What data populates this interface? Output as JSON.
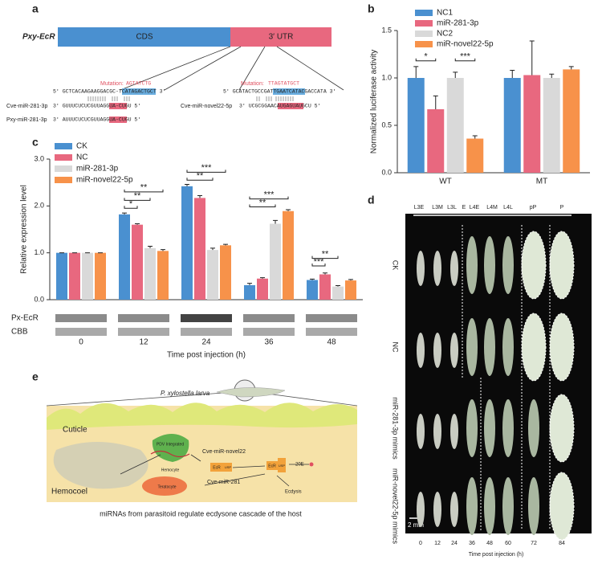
{
  "chart_data": [
    {
      "type": "bar",
      "label": "b",
      "ylabel": "Normalized luciferase activity",
      "categories": [
        "WT",
        "MT"
      ],
      "series": [
        {
          "name": "NC1",
          "color": "#4a90d0",
          "values": [
            1.0,
            1.0
          ],
          "errors": [
            0.12,
            0.08
          ]
        },
        {
          "name": "miR-281-3p",
          "color": "#e8687f",
          "values": [
            0.67,
            1.03
          ],
          "errors": [
            0.14,
            0.36
          ]
        },
        {
          "name": "NC2",
          "color": "#d9d9d9",
          "values": [
            1.0,
            1.0
          ],
          "errors": [
            0.06,
            0.04
          ]
        },
        {
          "name": "miR-novel22-5p",
          "color": "#f7924a",
          "values": [
            0.36,
            1.09
          ],
          "errors": [
            0.03,
            0.03
          ]
        }
      ],
      "annotations": [
        [
          "*",
          "***"
        ],
        []
      ],
      "ylim": [
        0,
        1.5
      ],
      "yticks": [
        {
          "value": 0,
          "label": "0.0"
        },
        0.5,
        {
          "value": 1,
          "label": "1.0"
        },
        1.5
      ]
    },
    {
      "type": "bar",
      "label": "c",
      "ylabel": "Relative expression level",
      "xlabel": "Time post injection (h)",
      "categories": [
        "0",
        "12",
        "24",
        "36",
        "48"
      ],
      "series": [
        {
          "name": "CK",
          "color": "#4a90d0",
          "values": [
            1.0,
            1.82,
            2.42,
            0.31,
            0.42
          ],
          "errors": [
            0.0,
            0.03,
            0.04,
            0.04,
            0.02
          ]
        },
        {
          "name": "NC",
          "color": "#e8687f",
          "values": [
            1.0,
            1.6,
            2.17,
            0.45,
            0.54
          ],
          "errors": [
            0.0,
            0.02,
            0.05,
            0.02,
            0.03
          ]
        },
        {
          "name": "miR-281-3p",
          "color": "#d9d9d9",
          "values": [
            1.0,
            1.1,
            1.06,
            1.62,
            0.28
          ],
          "errors": [
            0.0,
            0.04,
            0.04,
            0.07,
            0.02
          ]
        },
        {
          "name": "miR-novel22-5p",
          "color": "#f7924a",
          "values": [
            1.0,
            1.04,
            1.16,
            1.89,
            0.41
          ],
          "errors": [
            0.0,
            0.03,
            0.02,
            0.03,
            0.02
          ]
        }
      ],
      "annotations": [
        [],
        [
          "*",
          "**",
          "**"
        ],
        [
          "**",
          "***"
        ],
        [
          "**",
          "***"
        ],
        [
          "***",
          "**"
        ]
      ],
      "blot_rows": [
        "Px-EcR",
        "CBB"
      ],
      "ylim": [
        0,
        3
      ],
      "yticks": [
        {
          "value": 0,
          "label": "0.0"
        },
        {
          "value": 1,
          "label": "1.0"
        },
        {
          "value": 2,
          "label": "2.0"
        },
        {
          "value": 3,
          "label": "3.0"
        }
      ]
    }
  ],
  "panel_a": {
    "label": "a",
    "gene": "Pxy-EcR",
    "cds": "CDS",
    "utr": "3′ UTR",
    "site1": {
      "mutation_label": "Mutation:",
      "mutation_seq": "AGTATCTG",
      "target": "5′ GCTCACAAGAAGGACGC-TCATAGACTGCT 3′",
      "cve_name": "Cve-miR-281-3p",
      "cve_seq": "3′ GUUUCUCUCGUUAGGUA-CUGU 5′",
      "pxy_name": "Pxy-miR-281-3p",
      "pxy_seq": "3′ AUUUCUCUCGUUAGGUA-CUGU 5′"
    },
    "site2": {
      "mutation_label": "Mutation:",
      "mutation_seq": "TTAGTATGCT",
      "target": "5′ GCATACTGCCGATTGAATCATACGACCATA 3′",
      "cve_name": "Cve-miR-novel22-5p",
      "cve_seq": "3′ UCGCGGAACAUGAGUAUGCU 5′"
    }
  },
  "panel_d": {
    "label": "d",
    "stages": [
      "L3E",
      "L3M",
      "L3L",
      "E",
      "L4E",
      "L4M",
      "L4L",
      "pP",
      "P"
    ],
    "rows": [
      "CK",
      "NC",
      "miR-281-3p mimics",
      "miR-novel22-5p mimics"
    ],
    "scale": "2 mm",
    "time_ticks": [
      "0",
      "12",
      "24",
      "36",
      "48",
      "60",
      "72",
      "84"
    ],
    "xlabel": "Time post injection (h)"
  },
  "panel_e": {
    "label": "e",
    "larva": "P. xylostella larva",
    "cuticle": "Cuticle",
    "hemocoel": "Hemocoel",
    "pdv": "PDV Integrated",
    "hemocyte": "Hemocyte",
    "teratocyte": "Teratocyte",
    "mir_novel22": "Cve-miR-novel22",
    "mir_281": "Cve-miR-281",
    "ecr1": "EcR",
    "usp1": "USP",
    "ecr2": "EcR",
    "usp2": "USP",
    "hormone": "20E",
    "ecdysis": "Ecdysis",
    "caption": "miRNAs from parasitoid regulate ecdysone cascade of the host"
  }
}
